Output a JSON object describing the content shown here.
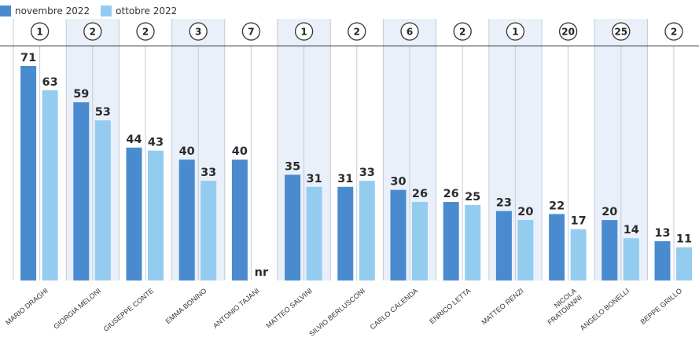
{
  "legend": [
    {
      "label": "novembre 2022",
      "color": "#4a8bd0"
    },
    {
      "label": "ottobre 2022",
      "color": "#94ccf0"
    }
  ],
  "colors": {
    "november": "#4a8bd0",
    "october": "#94ccf0",
    "shade": "#e9f0fa"
  },
  "chart_data": {
    "type": "bar",
    "ylim": [
      0,
      71
    ],
    "categories": [
      {
        "name": [
          "MARIO DRAGHI"
        ],
        "rank": "1",
        "nov": 71,
        "oct": 63,
        "nov_label": "71",
        "oct_label": "63",
        "shaded": false
      },
      {
        "name": [
          "GIORGIA MELONI"
        ],
        "rank": "2",
        "nov": 59,
        "oct": 53,
        "nov_label": "59",
        "oct_label": "53",
        "shaded": true
      },
      {
        "name": [
          "GIUSEPPE CONTE"
        ],
        "rank": "2",
        "nov": 44,
        "oct": 43,
        "nov_label": "44",
        "oct_label": "43",
        "shaded": false
      },
      {
        "name": [
          "EMMA BONINO"
        ],
        "rank": "3",
        "nov": 40,
        "oct": 33,
        "nov_label": "40",
        "oct_label": "33",
        "shaded": true
      },
      {
        "name": [
          "ANTONIO TAJANI"
        ],
        "rank": "7",
        "nov": 40,
        "oct": null,
        "nov_label": "40",
        "oct_label": "nr",
        "shaded": false
      },
      {
        "name": [
          "MATTEO SALVINI"
        ],
        "rank": "1",
        "nov": 35,
        "oct": 31,
        "nov_label": "35",
        "oct_label": "31",
        "shaded": true
      },
      {
        "name": [
          "SILVIO BERLUSCONI"
        ],
        "rank": "2",
        "nov": 31,
        "oct": 33,
        "nov_label": "31",
        "oct_label": "33",
        "shaded": false
      },
      {
        "name": [
          "CARLO CALENDA"
        ],
        "rank": "6",
        "nov": 30,
        "oct": 26,
        "nov_label": "30",
        "oct_label": "26",
        "shaded": true
      },
      {
        "name": [
          "ENRICO LETTA"
        ],
        "rank": "2",
        "nov": 26,
        "oct": 25,
        "nov_label": "26",
        "oct_label": "25",
        "shaded": false
      },
      {
        "name": [
          "MATTEO RENZI"
        ],
        "rank": "1",
        "nov": 23,
        "oct": 20,
        "nov_label": "23",
        "oct_label": "20",
        "shaded": true
      },
      {
        "name": [
          "NICOLA",
          "FRATOIANNI"
        ],
        "rank": "20",
        "nov": 22,
        "oct": 17,
        "nov_label": "22",
        "oct_label": "17",
        "shaded": false
      },
      {
        "name": [
          "ANGELO BONELLI"
        ],
        "rank": "25",
        "nov": 20,
        "oct": 14,
        "nov_label": "20",
        "oct_label": "14",
        "shaded": true
      },
      {
        "name": [
          "BEPPE GRILLO"
        ],
        "rank": "2",
        "nov": 13,
        "oct": 11,
        "nov_label": "13",
        "oct_label": "11",
        "shaded": false
      }
    ]
  }
}
